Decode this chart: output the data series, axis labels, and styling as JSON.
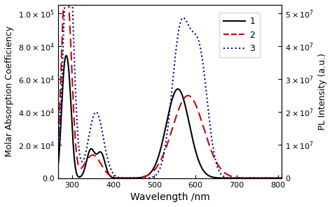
{
  "title": "",
  "xlabel": "Wavelength /nm",
  "ylabel_left": "Molar Absorption Coefficiency",
  "ylabel_right": "PL Intensity (a.u.)",
  "xlim": [
    265,
    810
  ],
  "ylim_left": [
    0,
    105000.0
  ],
  "ylim_right": [
    0,
    52500000.0
  ],
  "yticks_left": [
    0.0,
    20000.0,
    40000.0,
    60000.0,
    80000.0,
    100000.0
  ],
  "yticks_right": [
    0,
    10000000,
    20000000,
    30000000,
    40000000,
    50000000
  ],
  "xticks": [
    300,
    400,
    500,
    600,
    700,
    800
  ],
  "legend_labels": [
    "1",
    "2",
    "3"
  ],
  "line1_color": "#000000",
  "line2_color": "#cc0000",
  "line3_color": "#000099",
  "background_color": "#ffffff",
  "figsize": [
    4.74,
    2.96
  ],
  "dpi": 100
}
